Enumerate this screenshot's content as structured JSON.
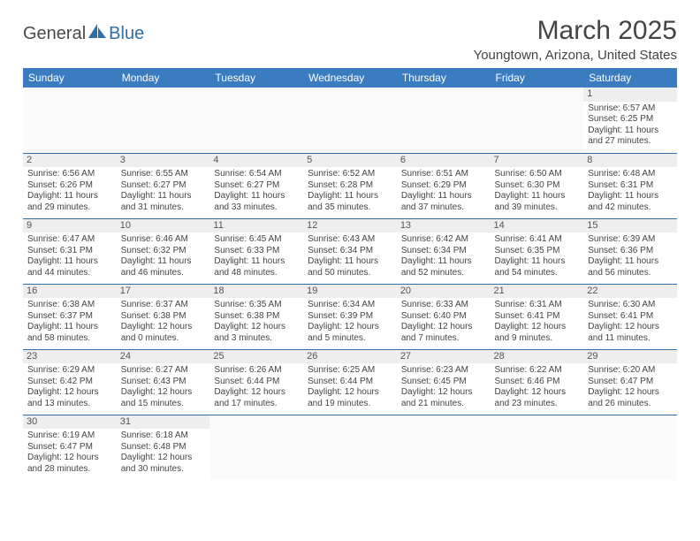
{
  "logo": {
    "text_left": "General",
    "text_right": "Blue",
    "sail_color": "#2f6fa8"
  },
  "title": "March 2025",
  "location": "Youngtown, Arizona, United States",
  "colors": {
    "header_bg": "#3b7bbf",
    "header_text": "#ffffff",
    "row_divider": "#2f6fa8",
    "daynum_bg": "#eeeeee",
    "body_text": "#444444"
  },
  "weekdays": [
    "Sunday",
    "Monday",
    "Tuesday",
    "Wednesday",
    "Thursday",
    "Friday",
    "Saturday"
  ],
  "weeks": [
    [
      null,
      null,
      null,
      null,
      null,
      null,
      {
        "n": "1",
        "sunrise": "Sunrise: 6:57 AM",
        "sunset": "Sunset: 6:25 PM",
        "daylight": "Daylight: 11 hours and 27 minutes."
      }
    ],
    [
      {
        "n": "2",
        "sunrise": "Sunrise: 6:56 AM",
        "sunset": "Sunset: 6:26 PM",
        "daylight": "Daylight: 11 hours and 29 minutes."
      },
      {
        "n": "3",
        "sunrise": "Sunrise: 6:55 AM",
        "sunset": "Sunset: 6:27 PM",
        "daylight": "Daylight: 11 hours and 31 minutes."
      },
      {
        "n": "4",
        "sunrise": "Sunrise: 6:54 AM",
        "sunset": "Sunset: 6:27 PM",
        "daylight": "Daylight: 11 hours and 33 minutes."
      },
      {
        "n": "5",
        "sunrise": "Sunrise: 6:52 AM",
        "sunset": "Sunset: 6:28 PM",
        "daylight": "Daylight: 11 hours and 35 minutes."
      },
      {
        "n": "6",
        "sunrise": "Sunrise: 6:51 AM",
        "sunset": "Sunset: 6:29 PM",
        "daylight": "Daylight: 11 hours and 37 minutes."
      },
      {
        "n": "7",
        "sunrise": "Sunrise: 6:50 AM",
        "sunset": "Sunset: 6:30 PM",
        "daylight": "Daylight: 11 hours and 39 minutes."
      },
      {
        "n": "8",
        "sunrise": "Sunrise: 6:48 AM",
        "sunset": "Sunset: 6:31 PM",
        "daylight": "Daylight: 11 hours and 42 minutes."
      }
    ],
    [
      {
        "n": "9",
        "sunrise": "Sunrise: 6:47 AM",
        "sunset": "Sunset: 6:31 PM",
        "daylight": "Daylight: 11 hours and 44 minutes."
      },
      {
        "n": "10",
        "sunrise": "Sunrise: 6:46 AM",
        "sunset": "Sunset: 6:32 PM",
        "daylight": "Daylight: 11 hours and 46 minutes."
      },
      {
        "n": "11",
        "sunrise": "Sunrise: 6:45 AM",
        "sunset": "Sunset: 6:33 PM",
        "daylight": "Daylight: 11 hours and 48 minutes."
      },
      {
        "n": "12",
        "sunrise": "Sunrise: 6:43 AM",
        "sunset": "Sunset: 6:34 PM",
        "daylight": "Daylight: 11 hours and 50 minutes."
      },
      {
        "n": "13",
        "sunrise": "Sunrise: 6:42 AM",
        "sunset": "Sunset: 6:34 PM",
        "daylight": "Daylight: 11 hours and 52 minutes."
      },
      {
        "n": "14",
        "sunrise": "Sunrise: 6:41 AM",
        "sunset": "Sunset: 6:35 PM",
        "daylight": "Daylight: 11 hours and 54 minutes."
      },
      {
        "n": "15",
        "sunrise": "Sunrise: 6:39 AM",
        "sunset": "Sunset: 6:36 PM",
        "daylight": "Daylight: 11 hours and 56 minutes."
      }
    ],
    [
      {
        "n": "16",
        "sunrise": "Sunrise: 6:38 AM",
        "sunset": "Sunset: 6:37 PM",
        "daylight": "Daylight: 11 hours and 58 minutes."
      },
      {
        "n": "17",
        "sunrise": "Sunrise: 6:37 AM",
        "sunset": "Sunset: 6:38 PM",
        "daylight": "Daylight: 12 hours and 0 minutes."
      },
      {
        "n": "18",
        "sunrise": "Sunrise: 6:35 AM",
        "sunset": "Sunset: 6:38 PM",
        "daylight": "Daylight: 12 hours and 3 minutes."
      },
      {
        "n": "19",
        "sunrise": "Sunrise: 6:34 AM",
        "sunset": "Sunset: 6:39 PM",
        "daylight": "Daylight: 12 hours and 5 minutes."
      },
      {
        "n": "20",
        "sunrise": "Sunrise: 6:33 AM",
        "sunset": "Sunset: 6:40 PM",
        "daylight": "Daylight: 12 hours and 7 minutes."
      },
      {
        "n": "21",
        "sunrise": "Sunrise: 6:31 AM",
        "sunset": "Sunset: 6:41 PM",
        "daylight": "Daylight: 12 hours and 9 minutes."
      },
      {
        "n": "22",
        "sunrise": "Sunrise: 6:30 AM",
        "sunset": "Sunset: 6:41 PM",
        "daylight": "Daylight: 12 hours and 11 minutes."
      }
    ],
    [
      {
        "n": "23",
        "sunrise": "Sunrise: 6:29 AM",
        "sunset": "Sunset: 6:42 PM",
        "daylight": "Daylight: 12 hours and 13 minutes."
      },
      {
        "n": "24",
        "sunrise": "Sunrise: 6:27 AM",
        "sunset": "Sunset: 6:43 PM",
        "daylight": "Daylight: 12 hours and 15 minutes."
      },
      {
        "n": "25",
        "sunrise": "Sunrise: 6:26 AM",
        "sunset": "Sunset: 6:44 PM",
        "daylight": "Daylight: 12 hours and 17 minutes."
      },
      {
        "n": "26",
        "sunrise": "Sunrise: 6:25 AM",
        "sunset": "Sunset: 6:44 PM",
        "daylight": "Daylight: 12 hours and 19 minutes."
      },
      {
        "n": "27",
        "sunrise": "Sunrise: 6:23 AM",
        "sunset": "Sunset: 6:45 PM",
        "daylight": "Daylight: 12 hours and 21 minutes."
      },
      {
        "n": "28",
        "sunrise": "Sunrise: 6:22 AM",
        "sunset": "Sunset: 6:46 PM",
        "daylight": "Daylight: 12 hours and 23 minutes."
      },
      {
        "n": "29",
        "sunrise": "Sunrise: 6:20 AM",
        "sunset": "Sunset: 6:47 PM",
        "daylight": "Daylight: 12 hours and 26 minutes."
      }
    ],
    [
      {
        "n": "30",
        "sunrise": "Sunrise: 6:19 AM",
        "sunset": "Sunset: 6:47 PM",
        "daylight": "Daylight: 12 hours and 28 minutes."
      },
      {
        "n": "31",
        "sunrise": "Sunrise: 6:18 AM",
        "sunset": "Sunset: 6:48 PM",
        "daylight": "Daylight: 12 hours and 30 minutes."
      },
      null,
      null,
      null,
      null,
      null
    ]
  ]
}
